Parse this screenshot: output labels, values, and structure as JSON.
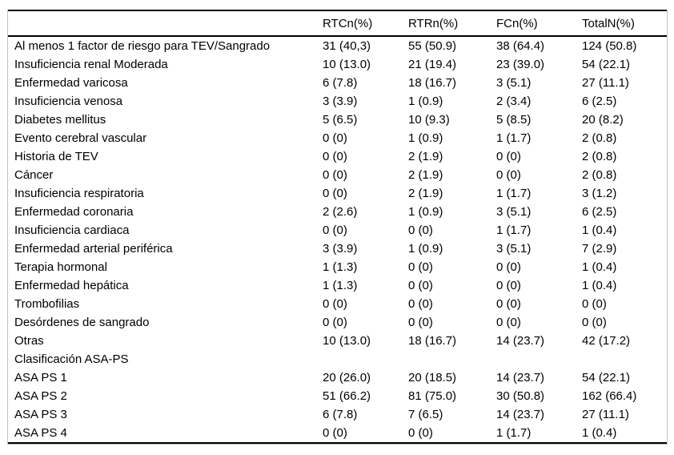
{
  "table": {
    "columns": [
      "",
      "RTCn(%)",
      "RTRn(%)",
      "FCn(%)",
      "TotalN(%)"
    ],
    "rows": [
      {
        "label": "Al menos 1 factor de riesgo para TEV/Sangrado",
        "values": [
          "31 (40,3)",
          "55 (50.9)",
          "38 (64.4)",
          "124 (50.8)"
        ]
      },
      {
        "label": "Insuficiencia renal Moderada",
        "values": [
          "10 (13.0)",
          "21 (19.4)",
          "23 (39.0)",
          "54 (22.1)"
        ]
      },
      {
        "label": "Enfermedad varicosa",
        "values": [
          "6 (7.8)",
          "18 (16.7)",
          "3 (5.1)",
          "27 (11.1)"
        ]
      },
      {
        "label": "Insuficiencia venosa",
        "values": [
          "3 (3.9)",
          "1 (0.9)",
          "2 (3.4)",
          "6 (2.5)"
        ]
      },
      {
        "label": "Diabetes mellitus",
        "values": [
          "5 (6.5)",
          "10 (9.3)",
          "5 (8.5)",
          "20 (8.2)"
        ]
      },
      {
        "label": "Evento cerebral vascular",
        "values": [
          "0 (0)",
          "1 (0.9)",
          "1 (1.7)",
          "2 (0.8)"
        ]
      },
      {
        "label": "Historia de TEV",
        "values": [
          "0 (0)",
          "2 (1.9)",
          "0 (0)",
          "2 (0.8)"
        ]
      },
      {
        "label": "Cáncer",
        "values": [
          "0 (0)",
          "2 (1.9)",
          "0 (0)",
          "2 (0.8)"
        ]
      },
      {
        "label": "Insuficiencia respiratoria",
        "values": [
          "0 (0)",
          "2 (1.9)",
          "1 (1.7)",
          "3 (1.2)"
        ]
      },
      {
        "label": "Enfermedad coronaria",
        "values": [
          "2 (2.6)",
          "1 (0.9)",
          "3 (5.1)",
          "6 (2.5)"
        ]
      },
      {
        "label": "Insuficiencia cardiaca",
        "values": [
          "0 (0)",
          "0 (0)",
          "1 (1.7)",
          "1 (0.4)"
        ]
      },
      {
        "label": "Enfermedad arterial periférica",
        "values": [
          "3 (3.9)",
          "1 (0.9)",
          "3 (5.1)",
          "7 (2.9)"
        ]
      },
      {
        "label": "Terapia hormonal",
        "values": [
          "1 (1.3)",
          "0 (0)",
          "0 (0)",
          "1 (0.4)"
        ]
      },
      {
        "label": "Enfermedad hepática",
        "values": [
          "1 (1.3)",
          "0 (0)",
          "0 (0)",
          "1 (0.4)"
        ]
      },
      {
        "label": "Trombofilias",
        "values": [
          "0 (0)",
          "0 (0)",
          "0 (0)",
          "0 (0)"
        ]
      },
      {
        "label": "Desórdenes de sangrado",
        "values": [
          "0 (0)",
          "0 (0)",
          "0 (0)",
          "0 (0)"
        ]
      },
      {
        "label": "Otras",
        "values": [
          "10 (13.0)",
          "18 (16.7)",
          "14 (23.7)",
          "42 (17.2)"
        ]
      },
      {
        "label": "Clasificación ASA-PS",
        "values": [
          "",
          "",
          "",
          ""
        ]
      },
      {
        "label": "ASA PS 1",
        "values": [
          "20 (26.0)",
          "20 (18.5)",
          "14 (23.7)",
          "54 (22.1)"
        ]
      },
      {
        "label": "ASA PS 2",
        "values": [
          "51 (66.2)",
          "81 (75.0)",
          "30 (50.8)",
          "162 (66.4)"
        ]
      },
      {
        "label": "ASA PS 3",
        "values": [
          "6 (7.8)",
          "7 (6.5)",
          "14 (23.7)",
          "27 (11.1)"
        ]
      },
      {
        "label": "ASA PS 4",
        "values": [
          "0 (0)",
          "0 (0)",
          "1 (1.7)",
          "1 (0.4)"
        ]
      }
    ]
  }
}
